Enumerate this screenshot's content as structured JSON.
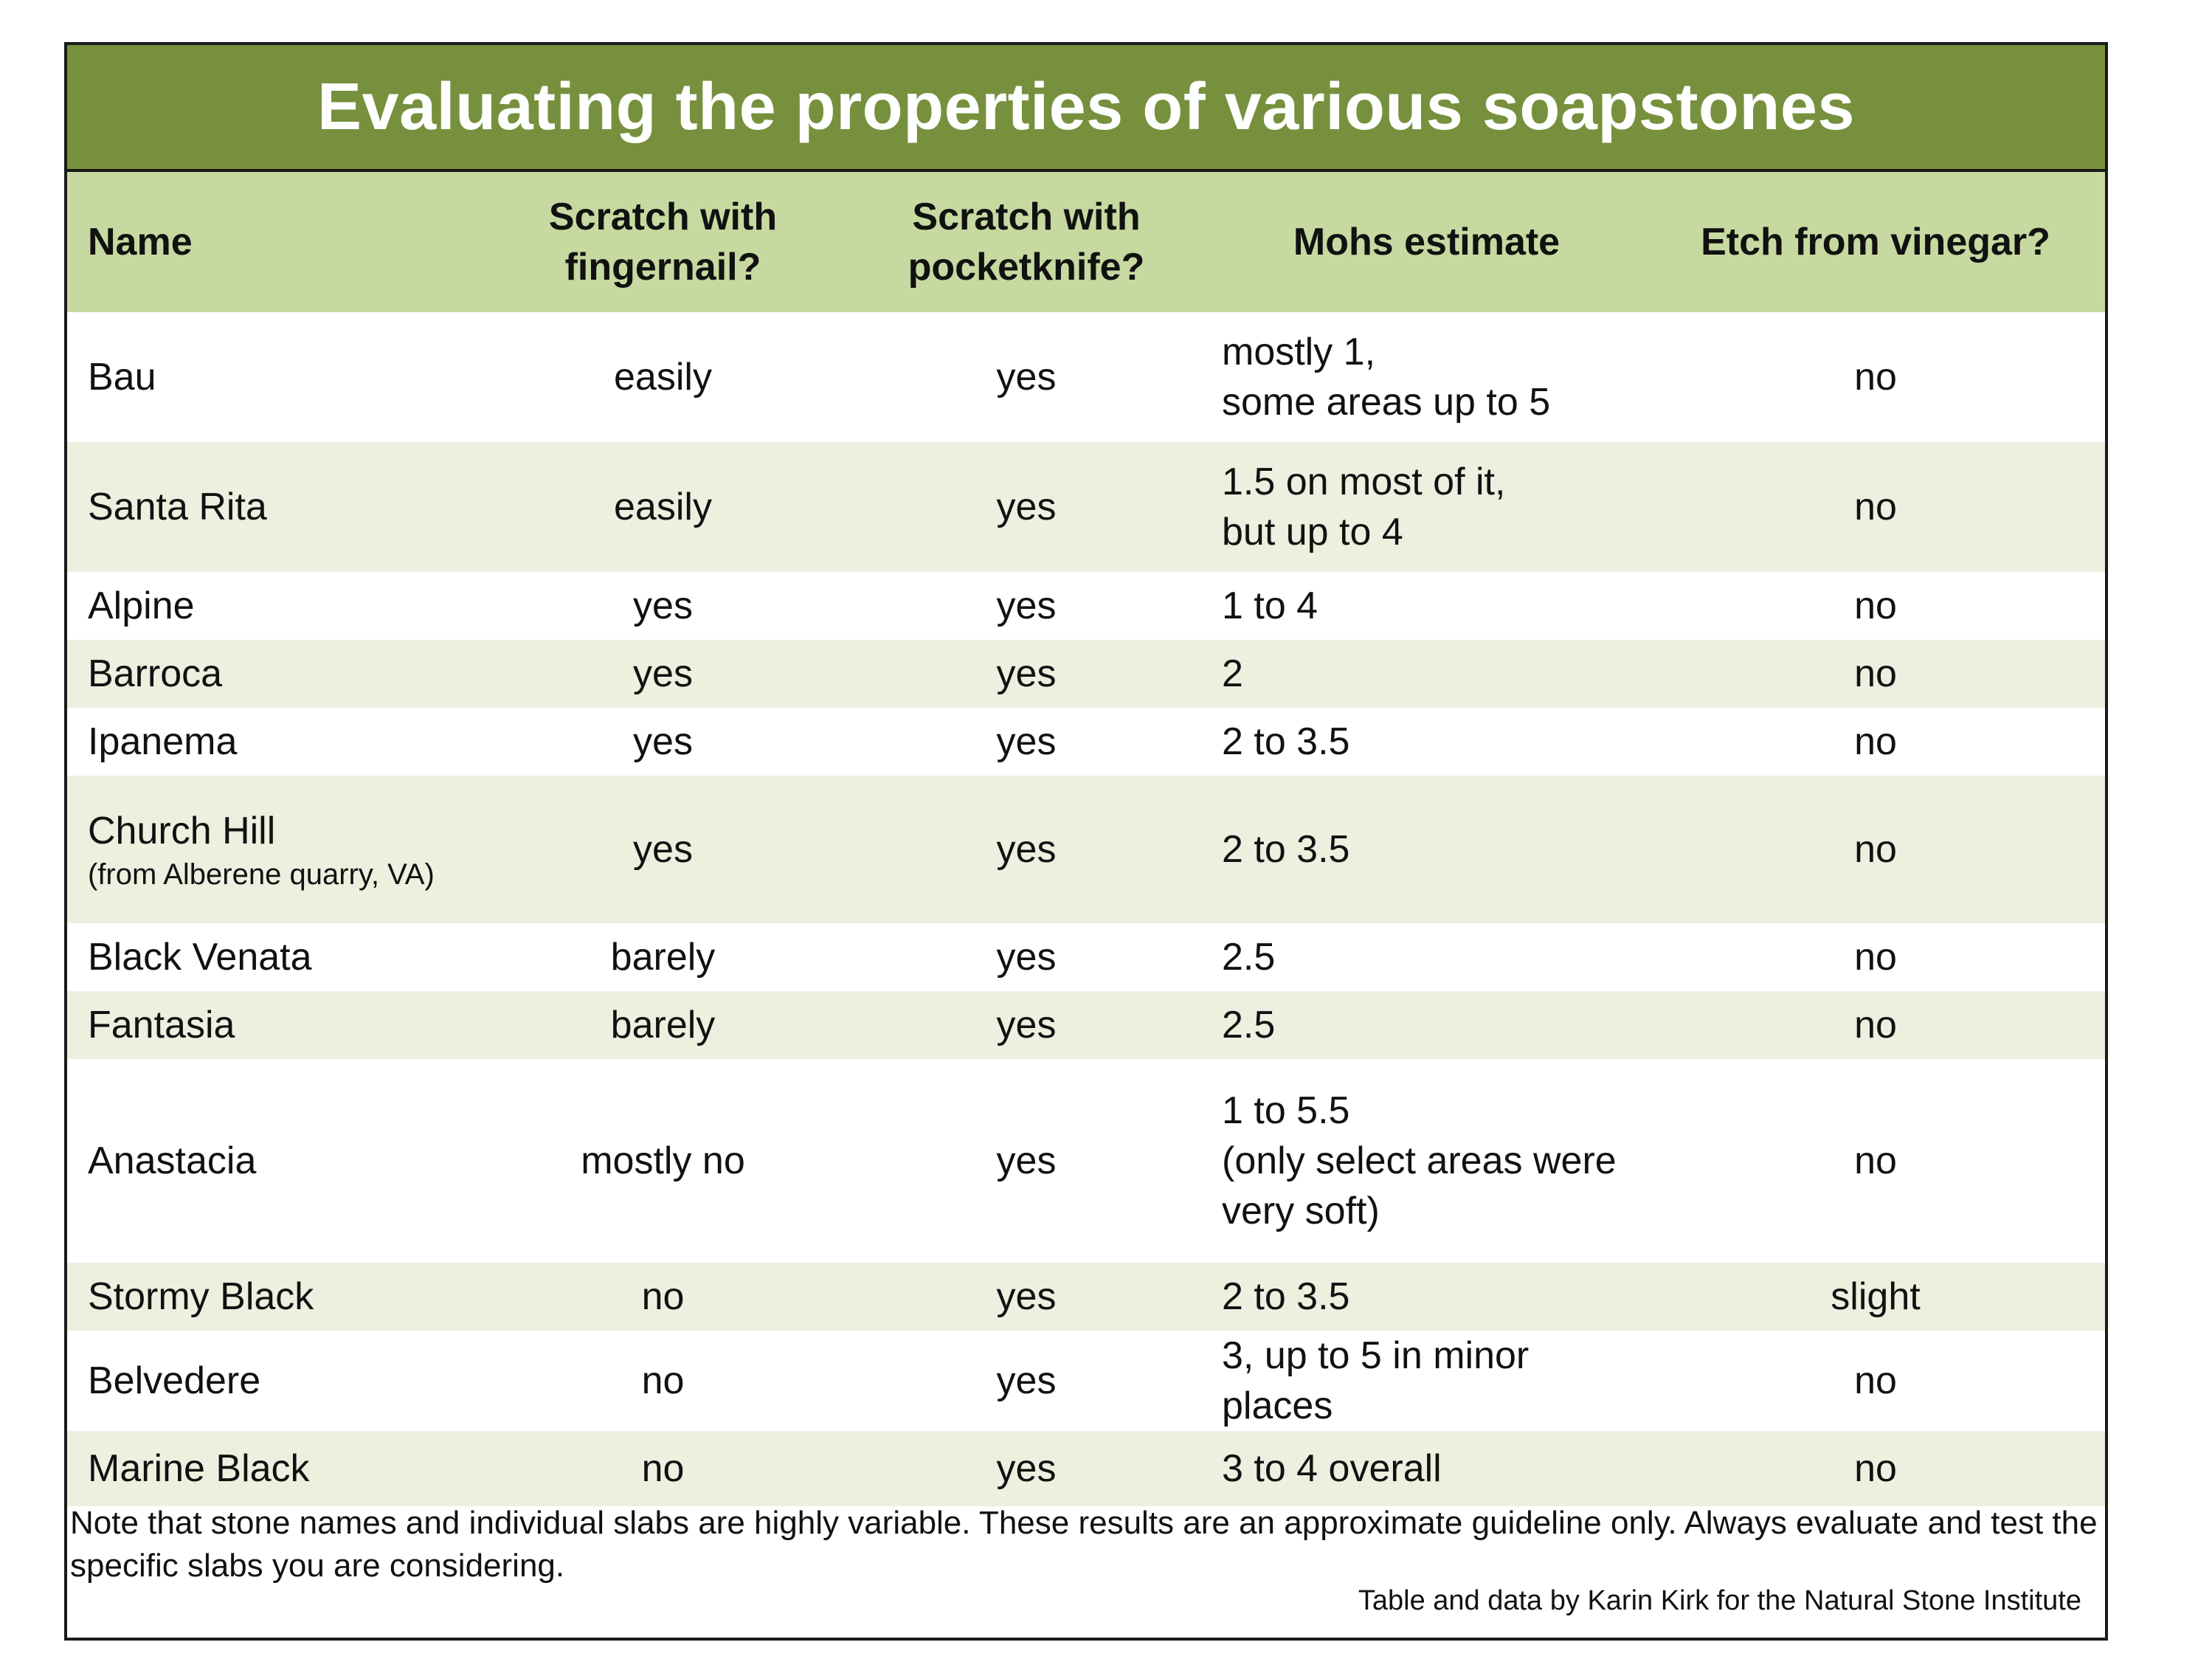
{
  "title": "Evaluating the properties of various soapstones",
  "columns": {
    "name": "Name",
    "fingernail": "Scratch with fingernail?",
    "pocketknife": "Scratch with pocketknife?",
    "mohs": "Mohs estimate",
    "vinegar": "Etch from vinegar?"
  },
  "rows": [
    {
      "name": "Bau",
      "sub": "",
      "fingernail": "easily",
      "pocketknife": "yes",
      "mohs": "mostly 1,\nsome areas up to 5",
      "vinegar": "no"
    },
    {
      "name": "Santa Rita",
      "sub": "",
      "fingernail": "easily",
      "pocketknife": "yes",
      "mohs": "1.5 on most of it,\nbut up to 4",
      "vinegar": "no"
    },
    {
      "name": "Alpine",
      "sub": "",
      "fingernail": "yes",
      "pocketknife": "yes",
      "mohs": "1 to 4",
      "vinegar": "no"
    },
    {
      "name": "Barroca",
      "sub": "",
      "fingernail": "yes",
      "pocketknife": "yes",
      "mohs": "2",
      "vinegar": "no"
    },
    {
      "name": "Ipanema",
      "sub": "",
      "fingernail": "yes",
      "pocketknife": "yes",
      "mohs": "2 to 3.5",
      "vinegar": "no"
    },
    {
      "name": "Church Hill",
      "sub": "(from Alberene quarry, VA)",
      "fingernail": "yes",
      "pocketknife": "yes",
      "mohs": "2 to 3.5",
      "vinegar": "no"
    },
    {
      "name": "Black Venata",
      "sub": "",
      "fingernail": "barely",
      "pocketknife": "yes",
      "mohs": "2.5",
      "vinegar": "no"
    },
    {
      "name": "Fantasia",
      "sub": "",
      "fingernail": "barely",
      "pocketknife": "yes",
      "mohs": "2.5",
      "vinegar": "no"
    },
    {
      "name": "Anastacia",
      "sub": "",
      "fingernail": "mostly no",
      "pocketknife": "yes",
      "mohs": "1 to 5.5\n(only select areas were\nvery soft)",
      "vinegar": "no"
    },
    {
      "name": "Stormy Black",
      "sub": "",
      "fingernail": "no",
      "pocketknife": "yes",
      "mohs": "2 to 3.5",
      "vinegar": "slight"
    },
    {
      "name": "Belvedere",
      "sub": "",
      "fingernail": "no",
      "pocketknife": "yes",
      "mohs": "3, up to 5 in minor places",
      "vinegar": "no"
    },
    {
      "name": "Marine Black",
      "sub": "",
      "fingernail": "no",
      "pocketknife": "yes",
      "mohs": "3 to 4 overall",
      "vinegar": "no"
    }
  ],
  "note": "Note that stone names and individual slabs are highly variable. These results are an approximate guideline only. Always evaluate and test the specific slabs you are considering.",
  "credit": "Table and data by Karin Kirk for the Natural Stone Institute",
  "colors": {
    "title_bg": "#77903d",
    "header_bg": "#c6d9a0",
    "row_alt_bg": "#ebf0df",
    "border": "#1a1a1a"
  }
}
